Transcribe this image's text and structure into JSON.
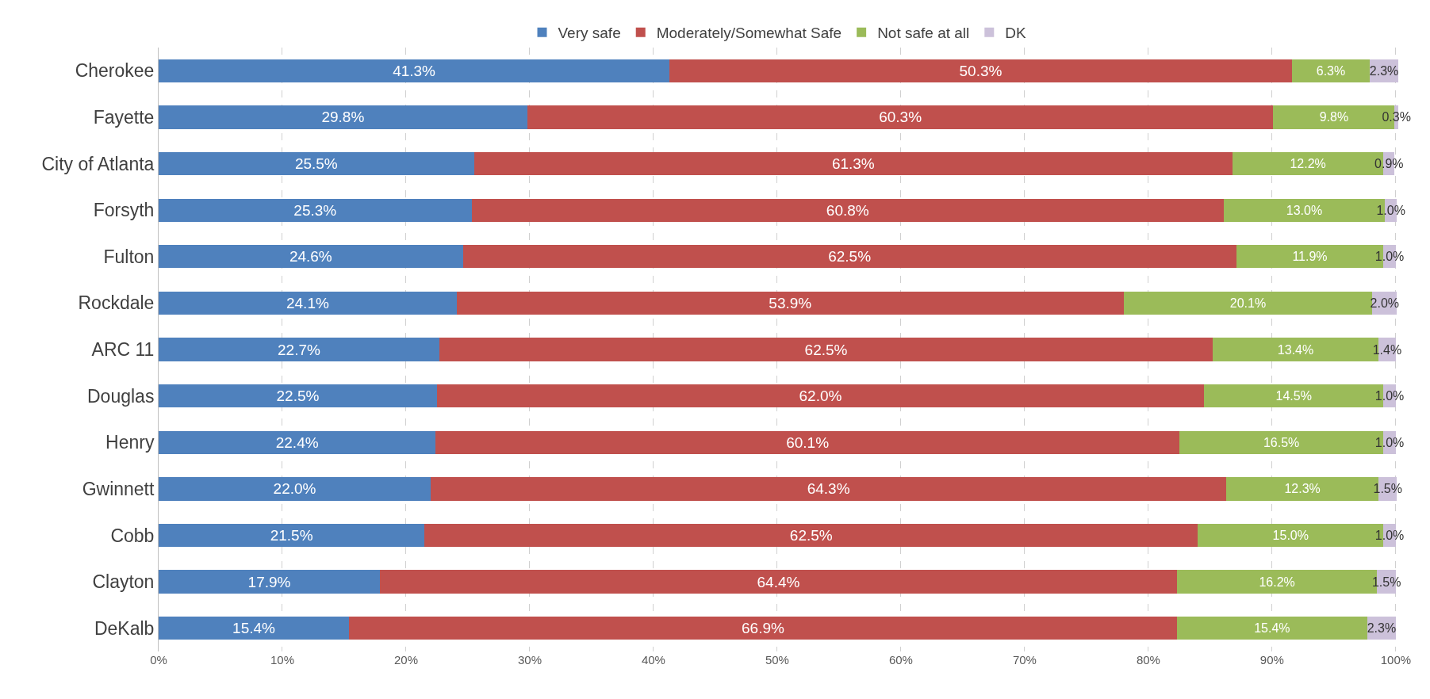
{
  "chart_data": {
    "type": "bar",
    "orientation": "horizontal",
    "stacked": true,
    "categories": [
      "Cherokee",
      "Fayette",
      "City of Atlanta",
      "Forsyth",
      "Fulton",
      "Rockdale",
      "ARC 11",
      "Douglas",
      "Henry",
      "Gwinnett",
      "Cobb",
      "Clayton",
      "DeKalb"
    ],
    "series": [
      {
        "name": "Very safe",
        "color": "#4f81bd",
        "values": [
          41.3,
          29.8,
          25.5,
          25.3,
          24.6,
          24.1,
          22.7,
          22.5,
          22.4,
          22.0,
          21.5,
          17.9,
          15.4
        ],
        "value_labels": [
          "41.3%",
          "29.8%",
          "25.5%",
          "25.3%",
          "24.6%",
          "24.1%",
          "22.7%",
          "22.5%",
          "22.4%",
          "22.0%",
          "21.5%",
          "17.9%",
          "15.4%"
        ]
      },
      {
        "name": "Moderately/Somewhat Safe",
        "color": "#c0504d",
        "values": [
          50.3,
          60.3,
          61.3,
          60.8,
          62.5,
          53.9,
          62.5,
          62.0,
          60.1,
          64.3,
          62.5,
          64.4,
          66.9
        ],
        "value_labels": [
          "50.3%",
          "60.3%",
          "61.3%",
          "60.8%",
          "62.5%",
          "53.9%",
          "62.5%",
          "62.0%",
          "60.1%",
          "64.3%",
          "62.5%",
          "64.4%",
          "66.9%"
        ]
      },
      {
        "name": "Not safe at all",
        "color": "#9bbb59",
        "values": [
          6.3,
          9.8,
          12.2,
          13.0,
          11.9,
          20.1,
          13.4,
          14.5,
          16.5,
          12.3,
          15.0,
          16.2,
          15.4
        ],
        "value_labels": [
          "6.3%",
          "9.8%",
          "12.2%",
          "13.0%",
          "11.9%",
          "20.1%",
          "13.4%",
          "14.5%",
          "16.5%",
          "12.3%",
          "15.0%",
          "16.2%",
          "15.4%"
        ]
      },
      {
        "name": "DK",
        "color": "#ccc1da",
        "values": [
          2.3,
          0.3,
          0.9,
          1.0,
          1.0,
          2.0,
          1.4,
          1.0,
          1.0,
          1.5,
          1.0,
          1.5,
          2.3
        ],
        "value_labels": [
          "2.3%",
          "0.3%",
          "0.9%",
          "1.0%",
          "1.0%",
          "2.0%",
          "1.4%",
          "1.0%",
          "1.0%",
          "1.5%",
          "1.0%",
          "1.5%",
          "2.3%"
        ]
      }
    ],
    "xlim": [
      0,
      100.2
    ],
    "xticks": [
      {
        "value": 0,
        "label": "0%"
      },
      {
        "value": 10,
        "label": "10%"
      },
      {
        "value": 20,
        "label": "20%"
      },
      {
        "value": 30,
        "label": "30%"
      },
      {
        "value": 40,
        "label": "40%"
      },
      {
        "value": 50,
        "label": "50%"
      },
      {
        "value": 60,
        "label": "60%"
      },
      {
        "value": 70,
        "label": "70%"
      },
      {
        "value": 80,
        "label": "80%"
      },
      {
        "value": 90,
        "label": "90%"
      },
      {
        "value": 100,
        "label": "100%"
      }
    ],
    "grid": "x",
    "legend": "top"
  }
}
